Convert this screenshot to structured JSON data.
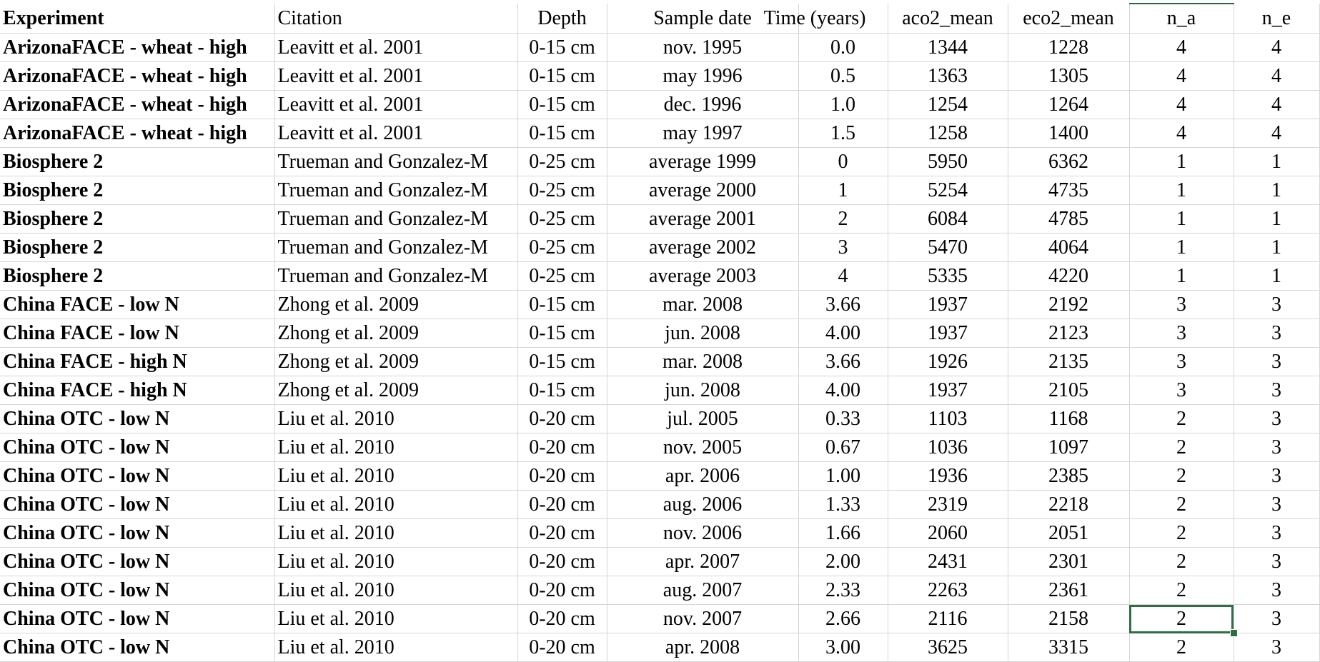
{
  "spreadsheet": {
    "headers": [
      "Experiment",
      "Citation",
      "Depth",
      "Sample date",
      "Time (years)",
      "aco2_mean",
      "eco2_mean",
      "n_a",
      "n_e"
    ],
    "rows": [
      [
        "ArizonaFACE - wheat - high",
        "Leavitt et al. 2001",
        "0-15 cm",
        "nov. 1995",
        "0.0",
        "1344",
        "1228",
        "4",
        "4"
      ],
      [
        "ArizonaFACE - wheat - high",
        "Leavitt et al. 2001",
        "0-15 cm",
        "may 1996",
        "0.5",
        "1363",
        "1305",
        "4",
        "4"
      ],
      [
        "ArizonaFACE - wheat - high",
        "Leavitt et al. 2001",
        "0-15 cm",
        "dec. 1996",
        "1.0",
        "1254",
        "1264",
        "4",
        "4"
      ],
      [
        "ArizonaFACE - wheat - high",
        "Leavitt et al. 2001",
        "0-15 cm",
        "may 1997",
        "1.5",
        "1258",
        "1400",
        "4",
        "4"
      ],
      [
        "Biosphere 2",
        "Trueman and  Gonzalez-M",
        "0-25 cm",
        "average 1999",
        "0",
        "5950",
        "6362",
        "1",
        "1"
      ],
      [
        "Biosphere 2",
        "Trueman and  Gonzalez-M",
        "0-25 cm",
        "average 2000",
        "1",
        "5254",
        "4735",
        "1",
        "1"
      ],
      [
        "Biosphere 2",
        "Trueman and  Gonzalez-M",
        "0-25 cm",
        "average 2001",
        "2",
        "6084",
        "4785",
        "1",
        "1"
      ],
      [
        "Biosphere 2",
        "Trueman and  Gonzalez-M",
        "0-25 cm",
        "average 2002",
        "3",
        "5470",
        "4064",
        "1",
        "1"
      ],
      [
        "Biosphere 2",
        "Trueman and  Gonzalez-M",
        "0-25 cm",
        "average 2003",
        "4",
        "5335",
        "4220",
        "1",
        "1"
      ],
      [
        "China FACE - low N",
        "Zhong et al. 2009",
        "0-15 cm",
        "mar. 2008",
        "3.66",
        "1937",
        "2192",
        "3",
        "3"
      ],
      [
        "China FACE - low N",
        "Zhong et al. 2009",
        "0-15 cm",
        "jun. 2008",
        "4.00",
        "1937",
        "2123",
        "3",
        "3"
      ],
      [
        "China FACE - high N",
        "Zhong et al. 2009",
        "0-15 cm",
        "mar. 2008",
        "3.66",
        "1926",
        "2135",
        "3",
        "3"
      ],
      [
        "China FACE - high N",
        "Zhong et al. 2009",
        "0-15 cm",
        "jun. 2008",
        "4.00",
        "1937",
        "2105",
        "3",
        "3"
      ],
      [
        "China OTC - low N",
        "Liu et al. 2010",
        "0-20 cm",
        "jul. 2005",
        "0.33",
        "1103",
        "1168",
        "2",
        "3"
      ],
      [
        "China OTC - low N",
        "Liu et al. 2010",
        "0-20 cm",
        "nov. 2005",
        "0.67",
        "1036",
        "1097",
        "2",
        "3"
      ],
      [
        "China OTC - low N",
        "Liu et al. 2010",
        "0-20 cm",
        "apr. 2006",
        "1.00",
        "1936",
        "2385",
        "2",
        "3"
      ],
      [
        "China OTC - low N",
        "Liu et al. 2010",
        "0-20 cm",
        "aug. 2006",
        "1.33",
        "2319",
        "2218",
        "2",
        "3"
      ],
      [
        "China OTC - low N",
        "Liu et al. 2010",
        "0-20 cm",
        "nov. 2006",
        "1.66",
        "2060",
        "2051",
        "2",
        "3"
      ],
      [
        "China OTC - low N",
        "Liu et al. 2010",
        "0-20 cm",
        "apr. 2007",
        "2.00",
        "2431",
        "2301",
        "2",
        "3"
      ],
      [
        "China OTC - low N",
        "Liu et al. 2010",
        "0-20 cm",
        "aug. 2007",
        "2.33",
        "2263",
        "2361",
        "2",
        "3"
      ],
      [
        "China OTC - low N",
        "Liu et al. 2010",
        "0-20 cm",
        "nov. 2007",
        "2.66",
        "2116",
        "2158",
        "2",
        "3"
      ],
      [
        "China OTC - low N",
        "Liu et al. 2010",
        "0-20 cm",
        "apr. 2008",
        "3.00",
        "3625",
        "3315",
        "2",
        "3"
      ]
    ]
  }
}
